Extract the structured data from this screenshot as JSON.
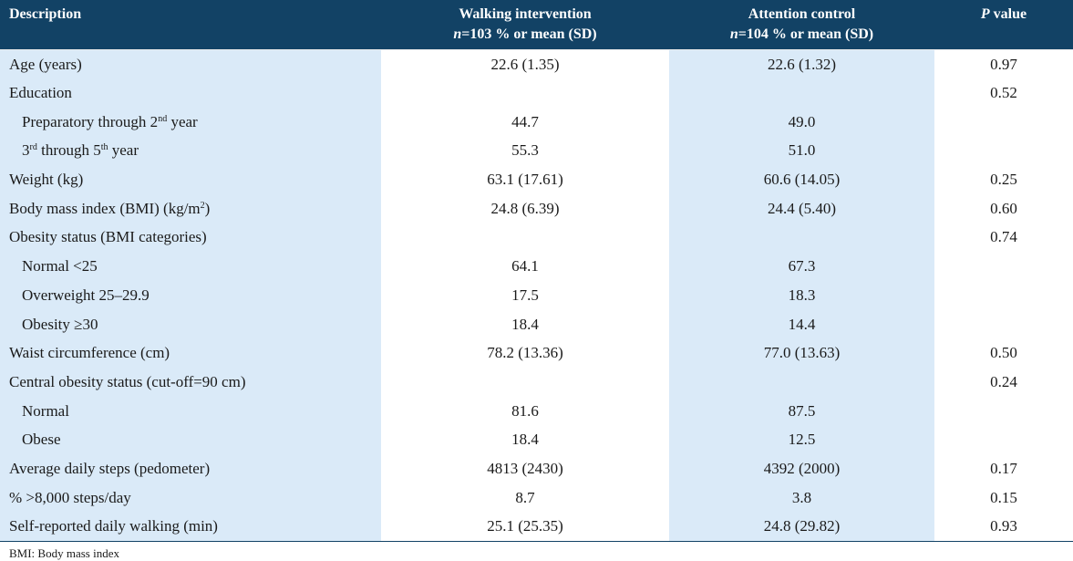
{
  "header": {
    "description": "Description",
    "walking_line1": "Walking intervention",
    "walking_n": "n",
    "walking_line2": "=103 % or mean (SD)",
    "control_line1": "Attention control",
    "control_n": "n",
    "control_line2": "=104 % or mean (SD)",
    "p_italic": "P",
    "p_rest": " value"
  },
  "rows": [
    {
      "label": "Age (years)",
      "walk": "22.6 (1.35)",
      "ctrl": "22.6 (1.32)",
      "p": "0.97"
    },
    {
      "label": "Education",
      "walk": "",
      "ctrl": "",
      "p": "0.52"
    },
    {
      "label_pre": "Preparatory through 2",
      "label_sup": "nd",
      "label_post": " year",
      "walk": "44.7",
      "ctrl": "49.0",
      "p": ""
    },
    {
      "label_pre": "3",
      "label_sup": "rd",
      "label_mid": " through 5",
      "label_sup2": "th",
      "label_post": " year",
      "walk": "55.3",
      "ctrl": "51.0",
      "p": ""
    },
    {
      "label": "Weight (kg)",
      "walk": "63.1 (17.61)",
      "ctrl": "60.6 (14.05)",
      "p": "0.25"
    },
    {
      "label_pre": "Body mass index (BMI) (kg/m",
      "label_sup": "2",
      "label_post": ")",
      "walk": "24.8 (6.39)",
      "ctrl": "24.4 (5.40)",
      "p": "0.60"
    },
    {
      "label": "Obesity status (BMI categories)",
      "walk": "",
      "ctrl": "",
      "p": "0.74"
    },
    {
      "label": "Normal <25",
      "walk": "64.1",
      "ctrl": "67.3",
      "p": ""
    },
    {
      "label": "Overweight 25–29.9",
      "walk": "17.5",
      "ctrl": "18.3",
      "p": ""
    },
    {
      "label": "Obesity ≥30",
      "walk": "18.4",
      "ctrl": "14.4",
      "p": ""
    },
    {
      "label": "Waist circumference (cm)",
      "walk": "78.2 (13.36)",
      "ctrl": "77.0 (13.63)",
      "p": "0.50"
    },
    {
      "label": "Central obesity status (cut-off=90 cm)",
      "walk": "",
      "ctrl": "",
      "p": "0.24"
    },
    {
      "label": "Normal",
      "walk": "81.6",
      "ctrl": "87.5",
      "p": ""
    },
    {
      "label": "Obese",
      "walk": "18.4",
      "ctrl": "12.5",
      "p": ""
    },
    {
      "label": "Average daily steps (pedometer)",
      "walk": "4813 (2430)",
      "ctrl": "4392 (2000)",
      "p": "0.17"
    },
    {
      "label": "% >8,000 steps/day",
      "walk": "8.7",
      "ctrl": "3.8",
      "p": "0.15"
    },
    {
      "label": "Self-reported daily walking (min)",
      "walk": "25.1 (25.35)",
      "ctrl": "24.8 (29.82)",
      "p": "0.93"
    }
  ],
  "footnote": "BMI: Body mass index"
}
